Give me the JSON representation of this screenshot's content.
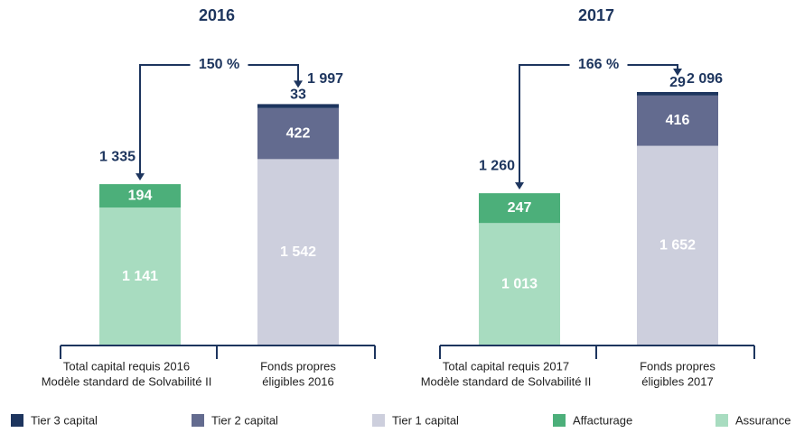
{
  "chart_data": [
    {
      "type": "stacked_bar",
      "title": "2016",
      "categories": [
        [
          "Total capital requis 2016",
          "Modèle standard de Solvabilité II"
        ],
        [
          "Fonds propres",
          "éligibles 2016"
        ]
      ],
      "series": [
        {
          "name": "Tier 3 capital",
          "color": "#1d355e",
          "values": [
            null,
            33
          ]
        },
        {
          "name": "Tier 2 capital",
          "color": "#636b8f",
          "values": [
            null,
            422
          ]
        },
        {
          "name": "Tier 1 capital",
          "color": "#cdcfdd",
          "values": [
            null,
            1542
          ],
          "value_labels": [
            null,
            "1 542"
          ]
        },
        {
          "name": "Affacturage",
          "color": "#4caf7a",
          "values": [
            194,
            null
          ]
        },
        {
          "name": "Assurance",
          "color": "#a8dcc0",
          "values": [
            1141,
            null
          ],
          "value_labels": [
            "1 141",
            null
          ]
        }
      ],
      "totals": [
        1335,
        1997
      ],
      "total_labels": [
        "1 335",
        "1 997"
      ],
      "ratio": 150,
      "ratio_label": "150 %"
    },
    {
      "type": "stacked_bar",
      "title": "2017",
      "categories": [
        [
          "Total capital requis 2017",
          "Modèle standard de Solvabilité II"
        ],
        [
          "Fonds propres",
          "éligibles 2017"
        ]
      ],
      "series": [
        {
          "name": "Tier 3 capital",
          "color": "#1d355e",
          "values": [
            null,
            29
          ]
        },
        {
          "name": "Tier 2 capital",
          "color": "#636b8f",
          "values": [
            null,
            416
          ]
        },
        {
          "name": "Tier 1 capital",
          "color": "#cdcfdd",
          "values": [
            null,
            1652
          ],
          "value_labels": [
            null,
            "1 652"
          ]
        },
        {
          "name": "Affacturage",
          "color": "#4caf7a",
          "values": [
            247,
            null
          ]
        },
        {
          "name": "Assurance",
          "color": "#a8dcc0",
          "values": [
            1013,
            null
          ],
          "value_labels": [
            "1 013",
            null
          ]
        }
      ],
      "totals": [
        1260,
        2096
      ],
      "total_labels": [
        "1 260",
        "2 096"
      ],
      "ratio": 166,
      "ratio_label": "166 %"
    }
  ]
}
